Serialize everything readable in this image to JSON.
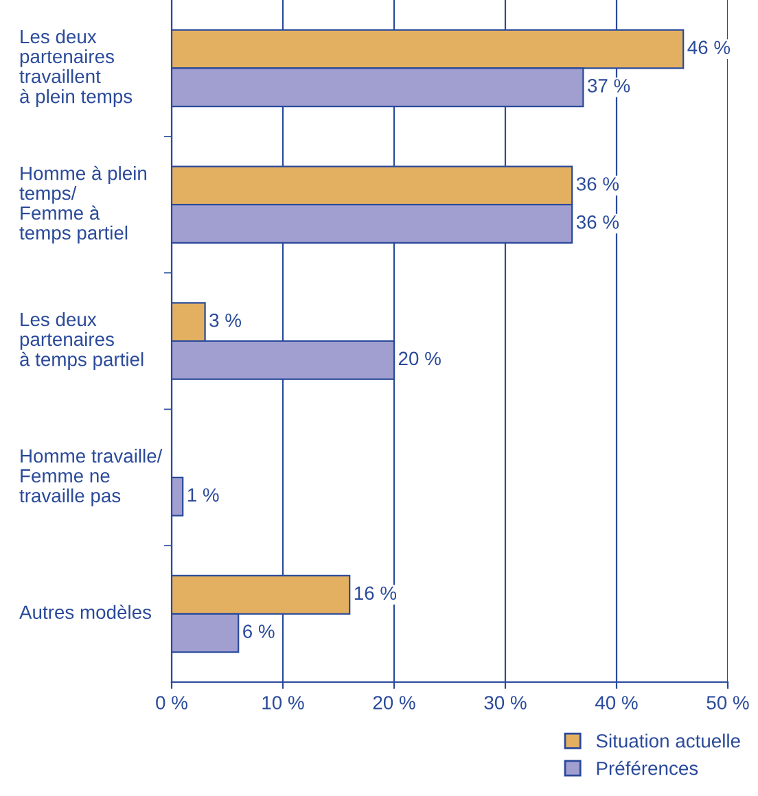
{
  "chart_data": {
    "type": "bar",
    "orientation": "horizontal",
    "categories": [
      "Les deux\npartenaires\ntravaillent\nà plein temps",
      "Homme à plein\ntemps/\nFemme à\ntemps partiel",
      "Les deux\npartenaires\nà temps partiel",
      "Homme travaille/\nFemme ne\ntravaille pas",
      "Autres modèles"
    ],
    "series": [
      {
        "name": "Situation actuelle",
        "color": "#e3b062",
        "values": [
          46,
          36,
          3,
          null,
          16
        ],
        "value_labels": [
          "46 %",
          "36 %",
          "3 %",
          null,
          "16 %"
        ]
      },
      {
        "name": "Préférences",
        "color": "#a09fd0",
        "values": [
          37,
          36,
          20,
          1,
          6
        ],
        "value_labels": [
          "37 %",
          "36 %",
          "20 %",
          "1 %",
          "6 %"
        ]
      }
    ],
    "xlim": [
      0,
      50
    ],
    "xticks": [
      {
        "value": 0,
        "label": "0 %"
      },
      {
        "value": 10,
        "label": "10 %"
      },
      {
        "value": 20,
        "label": "20 %"
      },
      {
        "value": 30,
        "label": "30 %"
      },
      {
        "value": 40,
        "label": "40 %"
      },
      {
        "value": 50,
        "label": "50 %"
      }
    ],
    "grid": "x",
    "legend": "bottom right"
  }
}
